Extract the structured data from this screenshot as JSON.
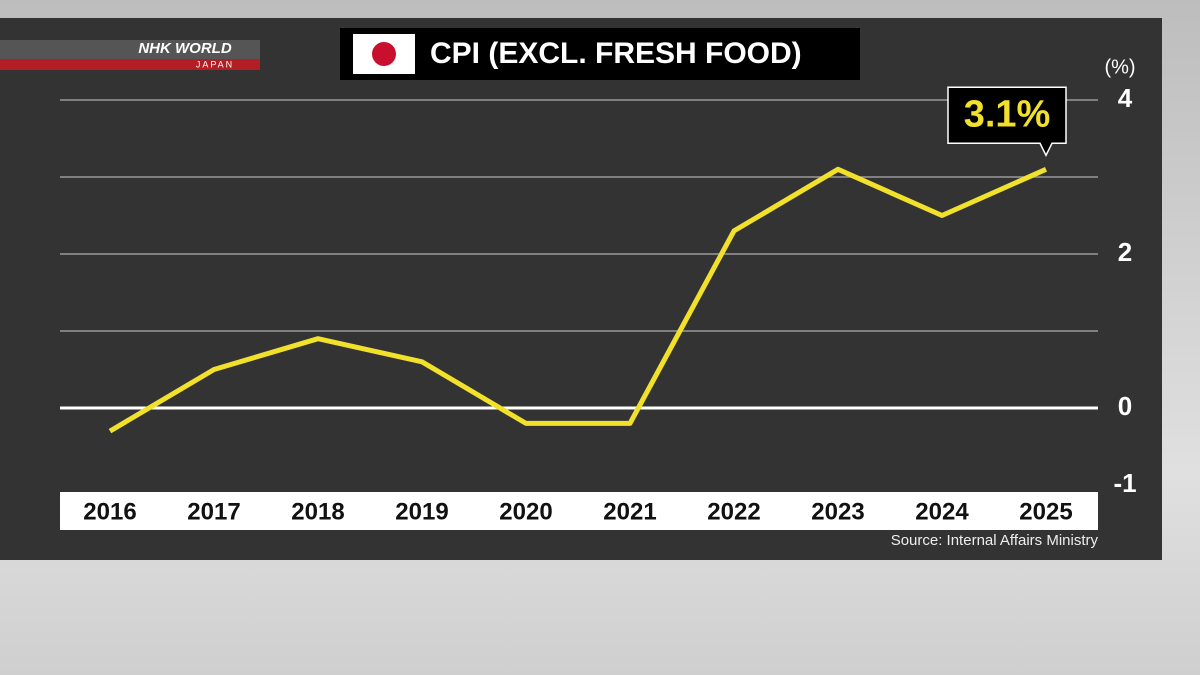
{
  "branding": {
    "name": "NHK WORLD",
    "sub": "JAPAN"
  },
  "chart_data": {
    "type": "line",
    "title": "CPI (EXCL. FRESH FOOD)",
    "y_unit": "(%)",
    "categories": [
      "2016",
      "2017",
      "2018",
      "2019",
      "2020",
      "2021",
      "2022",
      "2023",
      "2024",
      "2025"
    ],
    "series": [
      {
        "name": "CPI",
        "color": "#f2e12a",
        "values": [
          -0.3,
          0.5,
          0.9,
          0.6,
          -0.2,
          -0.2,
          2.3,
          3.1,
          2.5,
          3.1
        ],
        "value_labels": [
          null,
          null,
          null,
          null,
          null,
          null,
          null,
          null,
          null,
          "3.1%"
        ]
      }
    ],
    "ylim": [
      -1,
      4
    ],
    "yticks": [
      -1,
      0,
      2,
      4
    ],
    "gridlines": [
      0,
      1,
      2,
      3,
      4
    ],
    "source": "Source: Internal Affairs Ministry"
  }
}
